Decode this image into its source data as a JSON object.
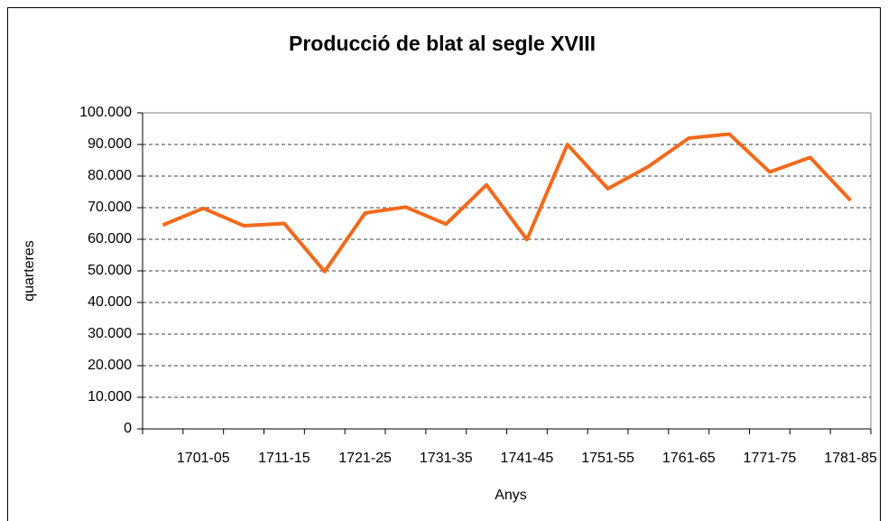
{
  "chart_data": {
    "type": "line",
    "title": "Producció de blat al segle XVIII",
    "x_label": "Anys",
    "y_label": "quarteres",
    "categories": [
      null,
      "1701-05",
      null,
      "1711-15",
      null,
      "1721-25",
      null,
      "1731-35",
      null,
      "1741-45",
      null,
      "1751-55",
      null,
      "1761-65",
      null,
      "1771-75",
      null,
      "1781-85"
    ],
    "values": [
      64500,
      69800,
      64300,
      65000,
      49800,
      68300,
      70200,
      64800,
      77200,
      59900,
      90000,
      76000,
      83000,
      92000,
      93300,
      81300,
      85900,
      72300
    ],
    "color": "#f26a1b",
    "ylim": [
      0,
      100000
    ],
    "yticks": [
      0,
      {
        "value": 10000,
        "label": "10.000"
      },
      {
        "value": 20000,
        "label": "20.000"
      },
      {
        "value": 30000,
        "label": "30.000"
      },
      {
        "value": 40000,
        "label": "40.000"
      },
      {
        "value": 50000,
        "label": "50.000"
      },
      {
        "value": 60000,
        "label": "60.000"
      },
      {
        "value": 70000,
        "label": "70.000"
      },
      {
        "value": 80000,
        "label": "80.000"
      },
      {
        "value": 90000,
        "label": "90.000"
      },
      {
        "value": 100000,
        "label": "100.000"
      }
    ],
    "grid": true
  }
}
